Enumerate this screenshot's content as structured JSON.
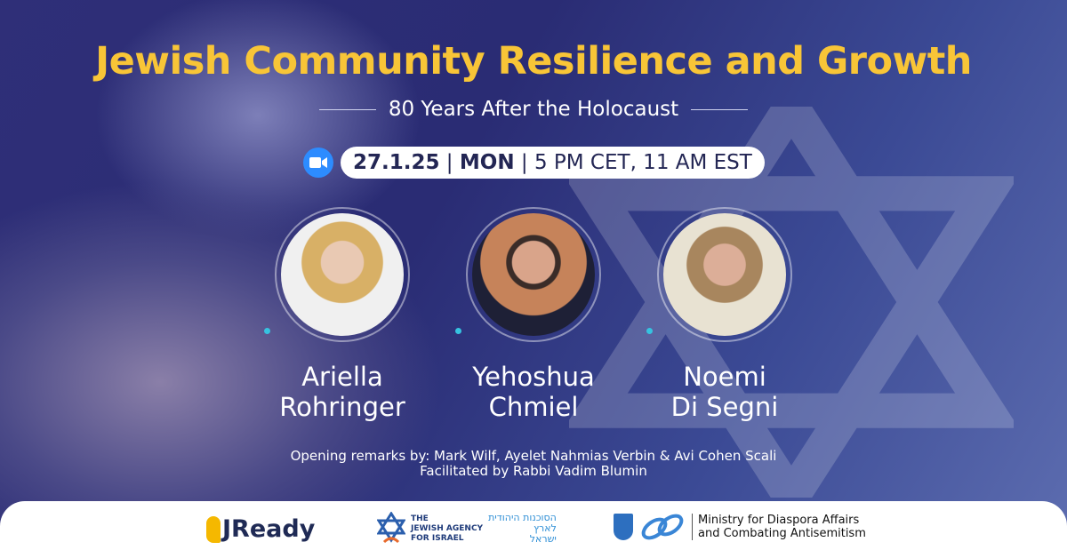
{
  "title": "Jewish Community Resilience and Growth",
  "subtitle": "80 Years After the Holocaust",
  "event": {
    "date": "27.1.25",
    "day": "MON",
    "time": "5 PM CET, 11 AM EST",
    "platform_icon": "zoom-video-icon"
  },
  "speakers": [
    {
      "first": "Ariella",
      "last": "Rohringer"
    },
    {
      "first": "Yehoshua",
      "last": "Chmiel"
    },
    {
      "first": "Noemi",
      "last": "Di Segni"
    }
  ],
  "credits": {
    "opening": "Opening remarks by: Mark Wilf, Ayelet Nahmias Verbin & Avi Cohen Scali",
    "facilitator": "Facilitated by Rabbi Vadim Blumin"
  },
  "logos": {
    "jready": "JReady",
    "agency_en": [
      "THE",
      "JEWISH AGENCY",
      "FOR ISRAEL"
    ],
    "agency_he": [
      "הסוכנות היהודית",
      "לארץ",
      "ישראל"
    ],
    "ministry": [
      "Ministry for Diaspora Affairs",
      "and Combating Antisemitism"
    ]
  },
  "colors": {
    "title": "#f8c537",
    "accent": "#36c3e0",
    "zoom": "#2d8cff",
    "navy": "#232654"
  }
}
